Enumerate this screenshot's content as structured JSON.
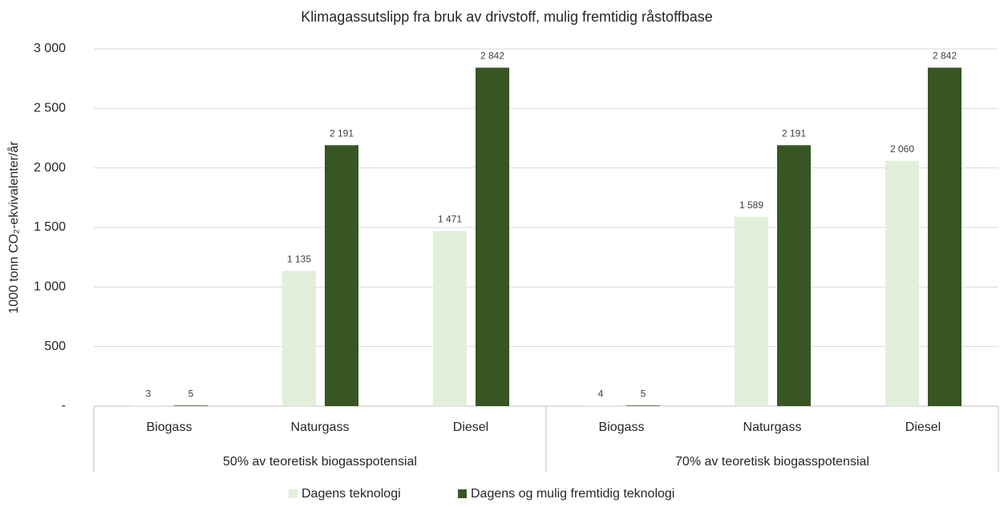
{
  "chart_data": {
    "type": "bar",
    "title": "Klimagassutslipp fra bruk av drivstoff, mulig fremtidig råstoffbase",
    "y_label": "1000 tonn CO₂-ekvivalenter/år",
    "categories": [
      "Biogass",
      "Naturgass",
      "Diesel",
      "Biogass",
      "Naturgass",
      "Diesel"
    ],
    "groups": [
      "50% av teoretisk biogasspotensial",
      "70% av teoretisk biogasspotensial"
    ],
    "series": [
      {
        "name": "Dagens teknologi",
        "color": "#e2efda",
        "values": [
          3,
          1135,
          1471,
          4,
          1589,
          2060
        ],
        "value_labels": [
          "3",
          "1 135",
          "1 471",
          "4",
          "1 589",
          "2 060"
        ]
      },
      {
        "name": "Dagens og mulig fremtidig teknologi",
        "color": "#375623",
        "values": [
          5,
          2191,
          2842,
          5,
          2191,
          2842
        ],
        "value_labels": [
          "5",
          "2 191",
          "2 842",
          "5",
          "2 191",
          "2 842"
        ]
      }
    ],
    "ylim": [
      0,
      3000
    ],
    "yticks": [
      {
        "value": 0,
        "label": "-"
      },
      500,
      {
        "value": 1000,
        "label": "1 000"
      },
      {
        "value": 1500,
        "label": "1 500"
      },
      {
        "value": 2000,
        "label": "2 000"
      },
      {
        "value": 2500,
        "label": "2 500"
      },
      {
        "value": 3000,
        "label": "3 000"
      }
    ],
    "grid": true,
    "legend": "bottom"
  }
}
